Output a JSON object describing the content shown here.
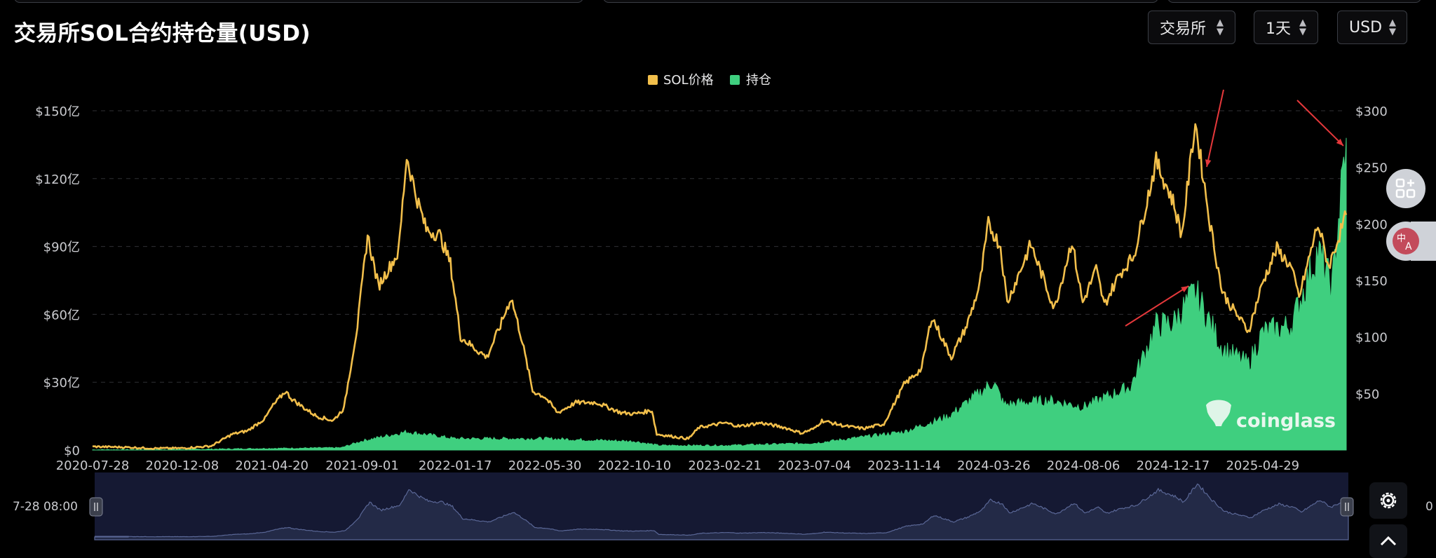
{
  "page": {
    "title": "交易所SOL合约持仓量(USD)"
  },
  "controls": {
    "exchange_label": "交易所",
    "interval_label": "1天",
    "currency_label": "USD"
  },
  "slider": {
    "start_label": "7-28 08:00",
    "end_partial": "0"
  },
  "watermark": "coinglass",
  "icons": {
    "grid": "grid-plus-icon",
    "translate": "translate-icon",
    "settings": "settings-gear-icon",
    "scroll_up": "chevron-up-icon"
  },
  "colors": {
    "price": "#f2bf4b",
    "oi": "#3fcf7f",
    "navigator_fill": "#232a47",
    "annotation": "#e5383b"
  },
  "chart_data": {
    "type": "line",
    "legend": [
      "SOL价格",
      "持仓"
    ],
    "legend_position": "top-center",
    "grid": true,
    "x_tick_labels": [
      "2020-07-28",
      "2020-12-08",
      "2021-04-20",
      "2021-09-01",
      "2022-01-17",
      "2022-05-30",
      "2022-10-10",
      "2023-02-21",
      "2023-07-04",
      "2023-11-14",
      "2024-03-26",
      "2024-08-06",
      "2024-12-17",
      "2025-04-29"
    ],
    "left_axis": {
      "label": "持仓",
      "ticks": [
        "$0",
        "$30亿",
        "$60亿",
        "$90亿",
        "$120亿",
        "$150亿"
      ],
      "range": [
        0,
        150
      ],
      "unit": "亿 USD"
    },
    "right_axis": {
      "label": "SOL价格",
      "ticks": [
        "$50",
        "$100",
        "$150",
        "$200",
        "$250",
        "$300"
      ],
      "range": [
        0,
        300
      ],
      "unit": "USD"
    },
    "series": [
      {
        "name": "SOL价格",
        "axis": "right",
        "points": [
          [
            "2020-07-28",
            3
          ],
          [
            "2020-09-15",
            2.5
          ],
          [
            "2020-10-25",
            1.5
          ],
          [
            "2020-12-08",
            1.6
          ],
          [
            "2021-01-20",
            3.5
          ],
          [
            "2021-02-20",
            14
          ],
          [
            "2021-03-15",
            17
          ],
          [
            "2021-04-10",
            28
          ],
          [
            "2021-04-20",
            38
          ],
          [
            "2021-05-10",
            52
          ],
          [
            "2021-05-20",
            45
          ],
          [
            "2021-06-05",
            38
          ],
          [
            "2021-06-25",
            30
          ],
          [
            "2021-07-20",
            26
          ],
          [
            "2021-08-05",
            37
          ],
          [
            "2021-08-25",
            110
          ],
          [
            "2021-09-09",
            190
          ],
          [
            "2021-09-25",
            145
          ],
          [
            "2021-10-10",
            160
          ],
          [
            "2021-10-25",
            175
          ],
          [
            "2021-11-06",
            260
          ],
          [
            "2021-11-20",
            225
          ],
          [
            "2021-12-05",
            195
          ],
          [
            "2021-12-25",
            190
          ],
          [
            "2022-01-10",
            165
          ],
          [
            "2022-01-25",
            100
          ],
          [
            "2022-02-15",
            90
          ],
          [
            "2022-03-05",
            82
          ],
          [
            "2022-03-25",
            110
          ],
          [
            "2022-04-10",
            135
          ],
          [
            "2022-04-25",
            100
          ],
          [
            "2022-05-12",
            52
          ],
          [
            "2022-05-30",
            47
          ],
          [
            "2022-06-18",
            33
          ],
          [
            "2022-07-15",
            42
          ],
          [
            "2022-08-15",
            42
          ],
          [
            "2022-09-20",
            33
          ],
          [
            "2022-10-10",
            32
          ],
          [
            "2022-11-05",
            35
          ],
          [
            "2022-11-12",
            14
          ],
          [
            "2022-12-29",
            10
          ],
          [
            "2023-01-14",
            20
          ],
          [
            "2023-02-21",
            24
          ],
          [
            "2023-03-15",
            21
          ],
          [
            "2023-04-15",
            24
          ],
          [
            "2023-05-20",
            20
          ],
          [
            "2023-06-15",
            15
          ],
          [
            "2023-07-04",
            19
          ],
          [
            "2023-07-15",
            26
          ],
          [
            "2023-08-20",
            21
          ],
          [
            "2023-09-15",
            19
          ],
          [
            "2023-10-15",
            23
          ],
          [
            "2023-11-14",
            58
          ],
          [
            "2023-12-10",
            72
          ],
          [
            "2023-12-25",
            118
          ],
          [
            "2024-01-23",
            82
          ],
          [
            "2024-02-15",
            110
          ],
          [
            "2024-03-05",
            145
          ],
          [
            "2024-03-18",
            200
          ],
          [
            "2024-04-05",
            180
          ],
          [
            "2024-04-15",
            130
          ],
          [
            "2024-05-20",
            182
          ],
          [
            "2024-06-24",
            125
          ],
          [
            "2024-07-20",
            185
          ],
          [
            "2024-08-05",
            130
          ],
          [
            "2024-08-25",
            160
          ],
          [
            "2024-09-06",
            128
          ],
          [
            "2024-09-28",
            155
          ],
          [
            "2024-10-20",
            172
          ],
          [
            "2024-11-22",
            255
          ],
          [
            "2024-12-17",
            220
          ],
          [
            "2024-12-30",
            190
          ],
          [
            "2025-01-19",
            290
          ],
          [
            "2025-02-10",
            200
          ],
          [
            "2025-02-28",
            140
          ],
          [
            "2025-03-12",
            128
          ],
          [
            "2025-04-08",
            105
          ],
          [
            "2025-04-29",
            148
          ],
          [
            "2025-05-20",
            178
          ],
          [
            "2025-06-10",
            162
          ],
          [
            "2025-06-22",
            135
          ],
          [
            "2025-07-20",
            200
          ],
          [
            "2025-08-05",
            162
          ],
          [
            "2025-08-31",
            208
          ]
        ]
      },
      {
        "name": "持仓",
        "axis": "left",
        "points": [
          [
            "2020-07-28",
            0.1
          ],
          [
            "2020-12-08",
            0.2
          ],
          [
            "2021-04-20",
            0.7
          ],
          [
            "2021-08-01",
            1.0
          ],
          [
            "2021-09-01",
            4
          ],
          [
            "2021-11-06",
            8
          ],
          [
            "2022-01-17",
            5
          ],
          [
            "2022-05-30",
            5
          ],
          [
            "2022-10-10",
            3.8
          ],
          [
            "2022-11-15",
            2.0
          ],
          [
            "2023-02-21",
            2.0
          ],
          [
            "2023-07-04",
            3.0
          ],
          [
            "2023-11-14",
            8
          ],
          [
            "2024-01-20",
            15
          ],
          [
            "2024-03-26",
            30
          ],
          [
            "2024-04-10",
            20
          ],
          [
            "2024-06-15",
            22
          ],
          [
            "2024-08-06",
            19
          ],
          [
            "2024-10-15",
            28
          ],
          [
            "2024-11-22",
            55
          ],
          [
            "2024-12-17",
            56
          ],
          [
            "2025-01-19",
            70
          ],
          [
            "2025-02-28",
            45
          ],
          [
            "2025-04-08",
            38
          ],
          [
            "2025-04-29",
            52
          ],
          [
            "2025-06-10",
            55
          ],
          [
            "2025-07-20",
            88
          ],
          [
            "2025-08-10",
            72
          ],
          [
            "2025-08-31",
            138
          ]
        ]
      }
    ]
  }
}
